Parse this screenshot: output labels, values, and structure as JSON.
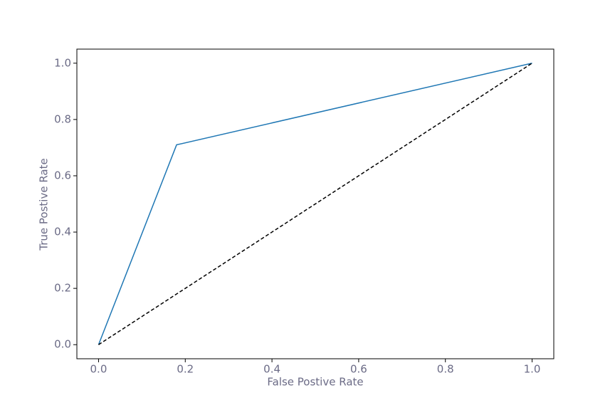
{
  "chart_data": {
    "type": "line",
    "xlabel": "False Postive Rate",
    "ylabel": "True Postive Rate",
    "series": [
      {
        "color": "#1f77b4",
        "linestyle": "solid",
        "x": [
          0,
          0.18,
          1
        ],
        "values": [
          0,
          0.71,
          1
        ]
      },
      {
        "color": "#000000",
        "linestyle": "dashed",
        "x": [
          0,
          1
        ],
        "values": [
          0,
          1
        ]
      }
    ],
    "xlim": [
      -0.05,
      1.05
    ],
    "ylim": [
      -0.05,
      1.05
    ],
    "xticks": [
      {
        "value": 0,
        "label": "0.0"
      },
      0.2,
      0.4,
      0.6,
      0.8,
      {
        "value": 1,
        "label": "1.0"
      }
    ],
    "yticks": [
      {
        "value": 0,
        "label": "0.0"
      },
      0.2,
      0.4,
      0.6,
      0.8,
      {
        "value": 1,
        "label": "1.0"
      }
    ],
    "grid": false
  }
}
